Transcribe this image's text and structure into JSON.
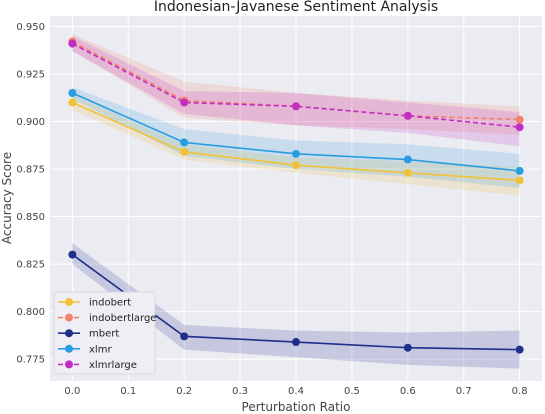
{
  "chart_data": {
    "type": "line",
    "title": "Indonesian-Javanese Sentiment Analysis",
    "xlabel": "Perturbation Ratio",
    "ylabel": "Accuracy Score",
    "x": [
      0.0,
      0.2,
      0.4,
      0.6,
      0.8
    ],
    "xticks": [
      "0.0",
      "0.1",
      "0.2",
      "0.3",
      "0.4",
      "0.5",
      "0.6",
      "0.7",
      "0.8"
    ],
    "xtick_values": [
      0.0,
      0.1,
      0.2,
      0.3,
      0.4,
      0.5,
      0.6,
      0.7,
      0.8
    ],
    "yticks": [
      "0.775",
      "0.800",
      "0.825",
      "0.850",
      "0.875",
      "0.900",
      "0.925",
      "0.950"
    ],
    "ytick_values": [
      0.775,
      0.8,
      0.825,
      0.85,
      0.875,
      0.9,
      0.925,
      0.95
    ],
    "xlim": [
      -0.04,
      0.84
    ],
    "ylim": [
      0.7635,
      0.9555
    ],
    "grid": true,
    "legend_position": "bottom-left",
    "series": [
      {
        "name": "indobert",
        "color": "#f0c23a",
        "dashed": false,
        "values": [
          0.91,
          0.884,
          0.877,
          0.873,
          0.869
        ],
        "lower": [
          0.906,
          0.88,
          0.873,
          0.867,
          0.861
        ],
        "upper": [
          0.914,
          0.888,
          0.881,
          0.879,
          0.876
        ]
      },
      {
        "name": "indobertlarge",
        "color": "#f4806c",
        "dashed": true,
        "values": [
          0.942,
          0.911,
          0.908,
          0.903,
          0.901
        ],
        "lower": [
          0.937,
          0.902,
          0.898,
          0.896,
          0.893
        ],
        "upper": [
          0.946,
          0.921,
          0.915,
          0.911,
          0.908
        ]
      },
      {
        "name": "mbert",
        "color": "#1f2f8a",
        "dashed": false,
        "values": [
          0.83,
          0.787,
          0.784,
          0.781,
          0.78
        ],
        "lower": [
          0.825,
          0.78,
          0.776,
          0.772,
          0.77
        ],
        "upper": [
          0.836,
          0.793,
          0.79,
          0.789,
          0.79
        ]
      },
      {
        "name": "xlmr",
        "color": "#2a9de0",
        "dashed": false,
        "values": [
          0.915,
          0.889,
          0.883,
          0.88,
          0.874
        ],
        "lower": [
          0.912,
          0.882,
          0.875,
          0.871,
          0.865
        ],
        "upper": [
          0.918,
          0.896,
          0.89,
          0.888,
          0.883
        ]
      },
      {
        "name": "xlmrlarge",
        "color": "#c42dc4",
        "dashed": true,
        "values": [
          0.941,
          0.91,
          0.908,
          0.903,
          0.897
        ],
        "lower": [
          0.937,
          0.904,
          0.898,
          0.894,
          0.887
        ],
        "upper": [
          0.945,
          0.916,
          0.915,
          0.91,
          0.905
        ]
      }
    ]
  }
}
